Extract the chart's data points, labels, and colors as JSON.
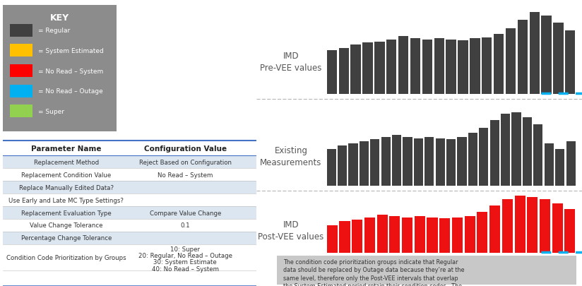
{
  "bg_color": "#ffffff",
  "key_box_color": "#8c8c8c",
  "key_title": "KEY",
  "key_items": [
    {
      "color": "#404040",
      "label": "= Regular"
    },
    {
      "color": "#FFC000",
      "label": "= System Estimated"
    },
    {
      "color": "#FF0000",
      "label": "= No Read – System"
    },
    {
      "color": "#00B0F0",
      "label": "= No Read – Outage"
    },
    {
      "color": "#92D050",
      "label": "= Super"
    }
  ],
  "table_header": [
    "Parameter Name",
    "Configuration Value"
  ],
  "table_rows": [
    [
      "Replacement Method",
      "Reject Based on Configuration"
    ],
    [
      "Replacement Condition Value",
      "No Read – System"
    ],
    [
      "Replace Manually Edited Data?",
      ""
    ],
    [
      "Use Early and Late MC Type Settings?",
      ""
    ],
    [
      "Replacement Evaluation Type",
      "Compare Value Change"
    ],
    [
      "Value Change Tolerance",
      "0.1"
    ],
    [
      "Percentage Change Tolerance",
      ""
    ],
    [
      "Condition Code Prioritization by Groups",
      "10: Super\n20: Regular, No Read – Outage\n30: System Estimate\n40: No Read – System"
    ]
  ],
  "chart1_label": "IMD\nPre-VEE values",
  "chart2_label": "Existing\nMeasurements",
  "chart3_label": "IMD\nPost-VEE values",
  "bar_color_dark": "#404040",
  "bar_color_red": "#EE1111",
  "bar_color_cyan": "#00B0F0",
  "chart1_values": [
    4.0,
    4.2,
    4.5,
    4.7,
    4.8,
    5.0,
    5.3,
    5.1,
    5.0,
    5.1,
    5.0,
    4.9,
    5.1,
    5.2,
    5.5,
    6.0,
    6.8,
    7.5,
    7.2,
    6.5,
    5.8
  ],
  "chart2_values": [
    3.5,
    3.8,
    4.0,
    4.2,
    4.4,
    4.6,
    4.8,
    4.6,
    4.5,
    4.6,
    4.5,
    4.4,
    4.6,
    5.0,
    5.5,
    6.2,
    6.8,
    7.0,
    6.5,
    5.8,
    4.0,
    3.5,
    4.2
  ],
  "chart3_values": [
    3.5,
    4.0,
    4.2,
    4.5,
    4.8,
    4.6,
    4.5,
    4.6,
    4.5,
    4.4,
    4.5,
    4.6,
    5.2,
    6.0,
    6.8,
    7.2,
    7.0,
    6.8,
    6.2,
    5.5
  ],
  "note_text": "The condition code prioritization groups indicate that Regular\ndata should be replaced by Outage data because they’re at the\nsame level, therefore only the Post-VEE intervals that overlap\nthe System Estimated period retain their condition codes.  The\nrest of the conditions codes are set to “No Read – System”.",
  "note_bg": "#c8c8c8",
  "sep_color": "#b0b0b0",
  "table_shade": "#dce6f1",
  "header_line_color": "#4472C4"
}
